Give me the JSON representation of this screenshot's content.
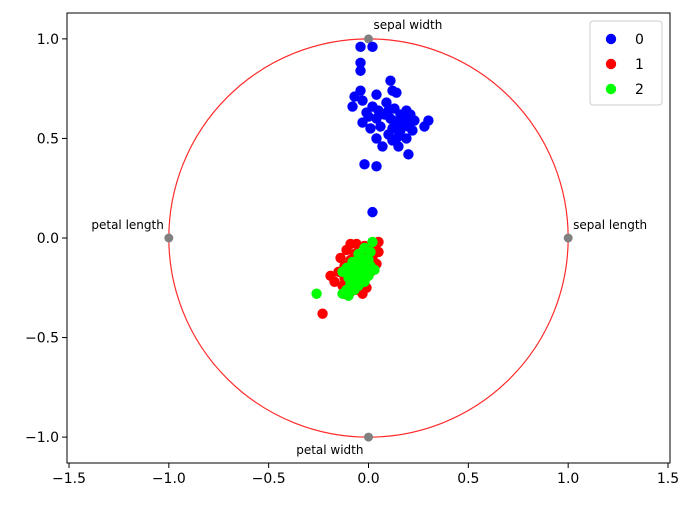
{
  "chart_data": {
    "type": "scatter",
    "title": "",
    "xlabel": "",
    "ylabel": "",
    "xlim": [
      -1.51,
      1.51
    ],
    "ylim": [
      -1.13,
      1.13
    ],
    "xticks": [
      -1.5,
      -1.0,
      -0.5,
      0.0,
      0.5,
      1.0,
      1.5
    ],
    "xtick_labels": [
      "−1.5",
      "−1.0",
      "−0.5",
      "0.0",
      "0.5",
      "1.0",
      "1.5"
    ],
    "yticks": [
      -1.0,
      -0.5,
      0.0,
      0.5,
      1.0
    ],
    "ytick_labels": [
      "−1.0",
      "−0.5",
      "0.0",
      "0.5",
      "1.0"
    ],
    "grid": false,
    "legend_position": "top-right",
    "unit_circle": {
      "radius": 1.0,
      "color": "#ff2a2a"
    },
    "anchors": [
      {
        "name": "sepal length",
        "x": 1.0,
        "y": 0.0,
        "label_side": "right"
      },
      {
        "name": "sepal width",
        "x": 0.0,
        "y": 1.0,
        "label_side": "top"
      },
      {
        "name": "petal length",
        "x": -1.0,
        "y": 0.0,
        "label_side": "left"
      },
      {
        "name": "petal width",
        "x": 0.0,
        "y": -1.0,
        "label_side": "bottom"
      }
    ],
    "anchor_color": "#808080",
    "series": [
      {
        "name": "0",
        "color": "#0000ff",
        "points": [
          [
            -0.04,
            0.96
          ],
          [
            0.02,
            0.96
          ],
          [
            -0.04,
            0.88
          ],
          [
            -0.04,
            0.84
          ],
          [
            0.11,
            0.79
          ],
          [
            0.12,
            0.74
          ],
          [
            -0.04,
            0.74
          ],
          [
            0.04,
            0.72
          ],
          [
            0.14,
            0.73
          ],
          [
            -0.07,
            0.71
          ],
          [
            -0.03,
            0.69
          ],
          [
            0.09,
            0.68
          ],
          [
            -0.08,
            0.66
          ],
          [
            0.02,
            0.66
          ],
          [
            0.05,
            0.64
          ],
          [
            0.13,
            0.65
          ],
          [
            0.19,
            0.64
          ],
          [
            0.1,
            0.64
          ],
          [
            -0.01,
            0.63
          ],
          [
            0.08,
            0.62
          ],
          [
            0.16,
            0.62
          ],
          [
            0.21,
            0.62
          ],
          [
            0.0,
            0.61
          ],
          [
            0.04,
            0.6
          ],
          [
            0.11,
            0.6
          ],
          [
            0.15,
            0.59
          ],
          [
            0.19,
            0.59
          ],
          [
            0.23,
            0.59
          ],
          [
            0.3,
            0.59
          ],
          [
            -0.03,
            0.58
          ],
          [
            0.13,
            0.58
          ],
          [
            0.17,
            0.57
          ],
          [
            0.2,
            0.56
          ],
          [
            0.06,
            0.56
          ],
          [
            0.28,
            0.56
          ],
          [
            0.01,
            0.55
          ],
          [
            0.12,
            0.55
          ],
          [
            0.16,
            0.54
          ],
          [
            0.22,
            0.54
          ],
          [
            0.1,
            0.52
          ],
          [
            0.15,
            0.51
          ],
          [
            0.19,
            0.5
          ],
          [
            0.04,
            0.5
          ],
          [
            0.12,
            0.49
          ],
          [
            0.07,
            0.46
          ],
          [
            0.15,
            0.46
          ],
          [
            0.2,
            0.42
          ],
          [
            -0.02,
            0.37
          ],
          [
            0.04,
            0.36
          ],
          [
            0.02,
            0.13
          ]
        ]
      },
      {
        "name": "1",
        "color": "#ff0000",
        "points": [
          [
            0.05,
            -0.02
          ],
          [
            -0.09,
            -0.03
          ],
          [
            -0.06,
            -0.03
          ],
          [
            -0.02,
            -0.04
          ],
          [
            0.0,
            -0.05
          ],
          [
            0.03,
            -0.05
          ],
          [
            -0.11,
            -0.06
          ],
          [
            0.05,
            -0.07
          ],
          [
            -0.07,
            -0.08
          ],
          [
            -0.02,
            -0.09
          ],
          [
            -0.14,
            -0.1
          ],
          [
            0.02,
            -0.1
          ],
          [
            -0.09,
            -0.11
          ],
          [
            -0.05,
            -0.12
          ],
          [
            -0.01,
            -0.12
          ],
          [
            0.04,
            -0.13
          ],
          [
            -0.12,
            -0.14
          ],
          [
            -0.07,
            -0.15
          ],
          [
            -0.03,
            -0.16
          ],
          [
            -0.15,
            -0.17
          ],
          [
            0.01,
            -0.17
          ],
          [
            -0.09,
            -0.18
          ],
          [
            -0.05,
            -0.19
          ],
          [
            -0.19,
            -0.19
          ],
          [
            -0.12,
            -0.2
          ],
          [
            -0.02,
            -0.21
          ],
          [
            -0.08,
            -0.22
          ],
          [
            -0.17,
            -0.22
          ],
          [
            -0.04,
            -0.23
          ],
          [
            -0.13,
            -0.24
          ],
          [
            -0.01,
            -0.25
          ],
          [
            -0.06,
            -0.26
          ],
          [
            -0.09,
            -0.27
          ],
          [
            -0.03,
            -0.28
          ],
          [
            -0.12,
            -0.28
          ],
          [
            -0.23,
            -0.38
          ]
        ]
      },
      {
        "name": "2",
        "color": "#00ff00",
        "points": [
          [
            0.02,
            -0.02
          ],
          [
            -0.02,
            -0.05
          ],
          [
            0.01,
            -0.07
          ],
          [
            -0.05,
            -0.08
          ],
          [
            -0.03,
            -0.1
          ],
          [
            0.0,
            -0.11
          ],
          [
            -0.08,
            -0.12
          ],
          [
            -0.04,
            -0.13
          ],
          [
            0.01,
            -0.14
          ],
          [
            -0.11,
            -0.15
          ],
          [
            -0.06,
            -0.15
          ],
          [
            -0.02,
            -0.16
          ],
          [
            0.03,
            -0.16
          ],
          [
            -0.13,
            -0.17
          ],
          [
            -0.08,
            -0.18
          ],
          [
            -0.04,
            -0.19
          ],
          [
            0.0,
            -0.19
          ],
          [
            -0.1,
            -0.2
          ],
          [
            -0.06,
            -0.21
          ],
          [
            -0.02,
            -0.22
          ],
          [
            -0.09,
            -0.23
          ],
          [
            -0.05,
            -0.24
          ],
          [
            -0.11,
            -0.26
          ],
          [
            -0.07,
            -0.26
          ],
          [
            -0.13,
            -0.28
          ],
          [
            -0.1,
            -0.29
          ],
          [
            -0.26,
            -0.28
          ],
          [
            -0.04,
            -0.15
          ],
          [
            -0.07,
            -0.12
          ],
          [
            -0.01,
            -0.18
          ]
        ]
      }
    ]
  }
}
